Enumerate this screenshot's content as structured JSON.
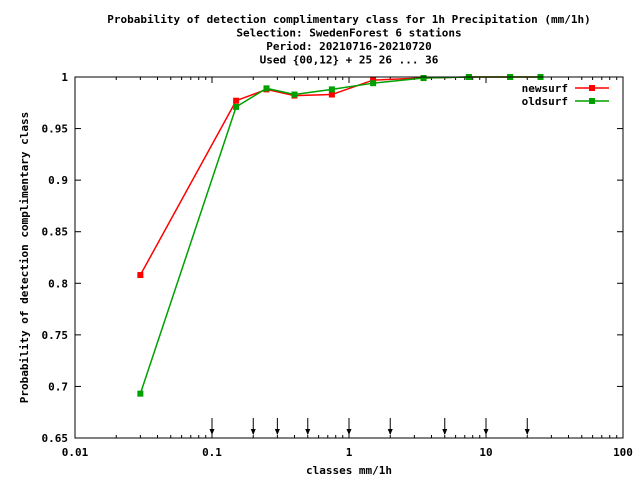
{
  "chart_data": {
    "type": "line",
    "title_lines": [
      "Probability of detection complimentary class  for 1h Precipitation (mm/1h)",
      "Selection: SwedenForest       6 stations",
      "Period: 20210716-20210720",
      "Used {00,12} + 25 26 ... 36"
    ],
    "xlabel": "classes mm/1h",
    "ylabel": "Probability of detection complimentary class",
    "x_scale": "log",
    "xlim": [
      0.01,
      100
    ],
    "ylim": [
      0.65,
      1.0
    ],
    "x_ticks": [
      0.01,
      0.1,
      1,
      10,
      100
    ],
    "x_tick_labels": [
      "0.01",
      "0.1",
      "1",
      "10",
      "100"
    ],
    "y_ticks": [
      0.65,
      0.7,
      0.75,
      0.8,
      0.85,
      0.9,
      0.95,
      1.0
    ],
    "y_tick_labels": [
      "0.65",
      "0.7",
      "0.75",
      "0.8",
      "0.85",
      "0.9",
      "0.95",
      "1"
    ],
    "grid": false,
    "legend_position": "top-right",
    "class_markers": [
      0.1,
      0.2,
      0.3,
      0.5,
      1,
      2,
      5,
      10,
      20
    ],
    "series": [
      {
        "name": "newsurf",
        "color": "#ff0000",
        "x": [
          0.03,
          0.15,
          0.25,
          0.4,
          0.75,
          1.5,
          3.5,
          7.5,
          15,
          25
        ],
        "y": [
          0.808,
          0.977,
          0.988,
          0.982,
          0.983,
          0.997,
          0.999,
          1.0,
          1.0,
          1.0
        ]
      },
      {
        "name": "oldsurf",
        "color": "#00a000",
        "x": [
          0.03,
          0.15,
          0.25,
          0.4,
          0.75,
          1.5,
          3.5,
          7.5,
          15,
          25
        ],
        "y": [
          0.693,
          0.971,
          0.989,
          0.983,
          0.988,
          0.994,
          0.999,
          1.0,
          1.0,
          1.0
        ]
      }
    ]
  }
}
